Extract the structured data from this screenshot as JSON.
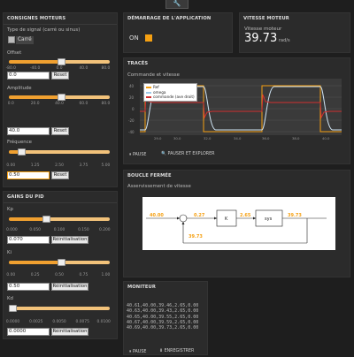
{
  "toolbar": {
    "wrench_icon": "wrench-icon"
  },
  "consignes": {
    "title": "CONSIGNES MOTEURS",
    "signal_label": "Type de signal (carré ou sinus)",
    "signal_value": "Carré",
    "offset": {
      "label": "Offset",
      "ticks": [
        "-80.0",
        "-40.0",
        "0.0",
        "40.0",
        "80.0"
      ],
      "value": "0.0",
      "fraction": 0.5,
      "reset": "Reset"
    },
    "amplitude": {
      "label": "Amplitude",
      "ticks": [
        "0.0",
        "20.0",
        "40.0",
        "60.0",
        "80.0"
      ],
      "value": "40.0",
      "fraction": 0.5,
      "reset": "Reset"
    },
    "frequence": {
      "label": "Fréquence",
      "ticks": [
        "0.00",
        "1.25",
        "2.50",
        "3.75",
        "5.00"
      ],
      "value": "0.50",
      "fraction": 0.1,
      "reset": "Reset"
    }
  },
  "gains": {
    "title": "GAINS DU PID",
    "kp": {
      "label": "Kp",
      "ticks": [
        "0.000",
        "0.050",
        "0.100",
        "0.150",
        "0.200"
      ],
      "value": "0.070",
      "fraction": 0.35,
      "reset": "Réinitialisation"
    },
    "ki": {
      "label": "Ki",
      "ticks": [
        "0.00",
        "0.25",
        "0.50",
        "0.75",
        "1.00"
      ],
      "value": "0.50",
      "fraction": 0.5,
      "reset": "Réinitialisation"
    },
    "kd": {
      "label": "Kd",
      "ticks": [
        "0.0000",
        "0.0025",
        "0.0050",
        "0.0075",
        "0.0100"
      ],
      "value": "0.0000",
      "fraction": 0.0,
      "reset": "Réinitialisation"
    }
  },
  "demarrage": {
    "title": "DÉMARRAGE DE L'APPLICATION",
    "on_label": "ON"
  },
  "vitesse": {
    "title": "VITESSE MOTEUR",
    "label": "Vitesse moteur",
    "value": "39.73",
    "unit": "rad/s"
  },
  "traces": {
    "title": "TRACÉS",
    "subtitle": "Commande et vitesse",
    "legend": [
      {
        "name": "Ref",
        "color": "#f5a012"
      },
      {
        "name": "omega",
        "color": "#9ec9e8"
      },
      {
        "name": "commande (ave droit)",
        "color": "#d03030"
      }
    ],
    "xticks": [
      "28.0",
      "29.0",
      "30.0",
      "31.0",
      "32.0",
      "33.0",
      "34.0",
      "35.0",
      "36.0",
      "37.0",
      "38.0",
      "39.0",
      "40.0",
      "41.0"
    ],
    "yticks": [
      "40",
      "20",
      "0",
      "-20",
      "-40"
    ],
    "pause": "PAUSE",
    "pause_export": "PAUSER ET EXPLORER"
  },
  "boucle": {
    "title": "BOUCLE FERMÉE",
    "subtitle": "Asservissement de vitesse",
    "ref": "40.00",
    "error": "0.27",
    "k": "K",
    "cmd": "2.65",
    "sys": "sys",
    "out": "39.73",
    "feedback": "39.73"
  },
  "moniteur": {
    "title": "MONITEUR",
    "lines": [
      "40.61,40.00,39.46,2.65,0.00",
      "40.63,40.00,39.43,2.65,0.00",
      "40.65,40.00,39.55,2.65,0.00",
      "40.67,40.00,39.59,2.65,0.00",
      "40.69,40.00,39.73,2.65,0.00"
    ],
    "pause": "PAUSE",
    "save": "ENREGISTRER"
  }
}
